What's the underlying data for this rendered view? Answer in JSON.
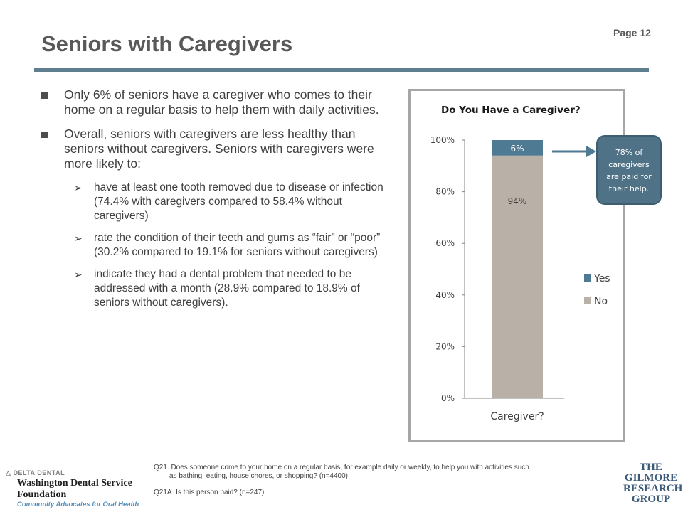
{
  "page_label": "Page 12",
  "title": "Seniors with Caregivers",
  "bullets": [
    {
      "text": "Only 6% of seniors have a caregiver who comes to their home on a regular basis to help them with daily activities."
    },
    {
      "text": "Overall, seniors with caregivers are less healthy than seniors without caregivers. Seniors with caregivers were more likely to:"
    }
  ],
  "sub_bullets": [
    {
      "text": "have at least one tooth removed due to disease or infection (74.4% with caregivers compared to 58.4% without caregivers)"
    },
    {
      "text": "rate the condition of their teeth and gums as “fair” or “poor” (30.2% compared to 19.1% for seniors without caregivers)"
    },
    {
      "text": "indicate they had a dental problem that needed to be addressed with a month (28.9% compared to 18.9% of seniors without caregivers)."
    }
  ],
  "callout": {
    "line1": "78% of",
    "line2": "caregivers",
    "line3": "are paid for",
    "line4": "their help."
  },
  "chart_data": {
    "type": "bar",
    "stacked": true,
    "title": "Do You Have a Caregiver?",
    "categories": [
      "Caregiver?"
    ],
    "series": [
      {
        "name": "No",
        "values": [
          94
        ],
        "label": "94%",
        "color": "#b9b1a7"
      },
      {
        "name": "Yes",
        "values": [
          6
        ],
        "label": "6%",
        "color": "#4f7a93"
      }
    ],
    "ylim": [
      0,
      100
    ],
    "yticks": [
      "0%",
      "20%",
      "40%",
      "60%",
      "80%",
      "100%"
    ],
    "legend": "right",
    "legend_order": [
      "Yes",
      "No"
    ]
  },
  "footer": {
    "q21_line1": "Q21. Does someone come to your home on a regular basis, for example daily or weekly, to help you with activities such",
    "q21_line2": "as bathing, eating, house chores, or shopping? (n=4400)",
    "q21a": "Q21A. Is this person paid? (n=247)",
    "left_logo": {
      "brand": "DELTA DENTAL",
      "org_line1": "Washington Dental Service",
      "org_line2": "Foundation",
      "tagline": "Community Advocates for Oral Health"
    },
    "right_logo": {
      "line1": "THE",
      "line2": "GILMORE",
      "line3": "RESEARCH",
      "line4": "GROUP"
    }
  },
  "colors": {
    "title": "#595959",
    "rule": "#5f7f8f",
    "yes": "#4f7a93",
    "no": "#b9b1a7",
    "callout": "#4f7287"
  }
}
